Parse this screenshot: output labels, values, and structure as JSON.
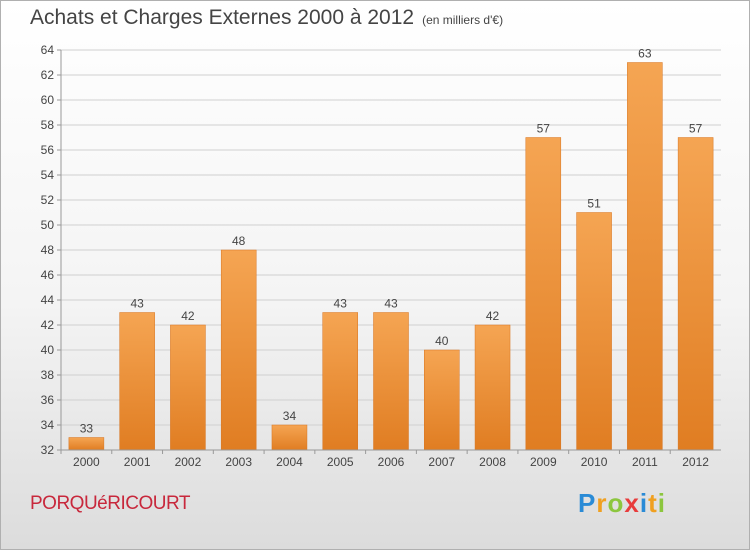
{
  "header": {
    "title": "Achats et Charges Externes 2000 à 2012",
    "unit": "(en milliers d'€)"
  },
  "footer": {
    "place": "PORQUéRICOURT",
    "logo_letters": [
      "P",
      "r",
      "o",
      "x",
      "i",
      "t",
      "i"
    ],
    "logo_colors": [
      "#2a8bd6",
      "#f0a020",
      "#8cc63e",
      "#e83c3c",
      "#2a8bd6",
      "#f0a020",
      "#8cc63e"
    ]
  },
  "colors": {
    "bar_top": "#f5a553",
    "bar_bottom": "#e07d22",
    "grid": "#d0d0d0",
    "axis": "#999999",
    "text": "#444444"
  },
  "chart_data": {
    "type": "bar",
    "categories": [
      "2000",
      "2001",
      "2002",
      "2003",
      "2004",
      "2005",
      "2006",
      "2007",
      "2008",
      "2009",
      "2010",
      "2011",
      "2012"
    ],
    "values": [
      33,
      43,
      42,
      48,
      34,
      43,
      43,
      40,
      42,
      57,
      51,
      63,
      57
    ],
    "ylim": [
      32,
      64
    ],
    "yticks": [
      32,
      34,
      36,
      38,
      40,
      42,
      44,
      46,
      48,
      50,
      52,
      54,
      56,
      58,
      60,
      62,
      64
    ],
    "grid": true,
    "data_labels": true
  }
}
